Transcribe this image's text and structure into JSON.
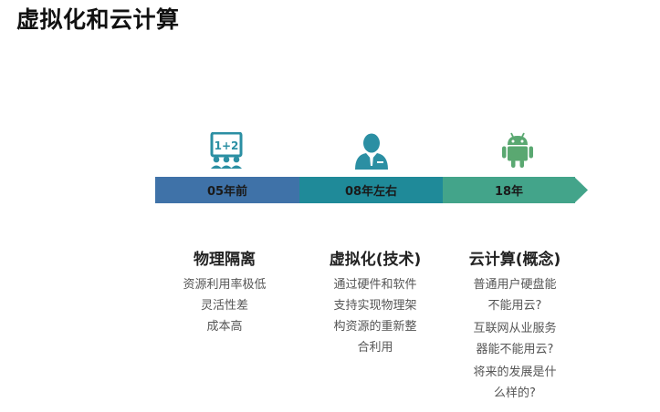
{
  "title": "虚拟化和云计算",
  "icons": [
    "classroom-icon",
    "user-icon",
    "android-icon"
  ],
  "colors": {
    "stage1": "#3f72a8",
    "stage2": "#1f8a99",
    "stage3": "#43a48a",
    "icon": "#2b8fa3",
    "android": "#5aa871"
  },
  "classroom_label": "1+2",
  "timeline": [
    {
      "label": "05年前"
    },
    {
      "label": "08年左右"
    },
    {
      "label": "18年"
    }
  ],
  "columns": [
    {
      "heading": "物理隔离",
      "lines": [
        "资源利用率极低",
        "灵活性差",
        "成本高"
      ]
    },
    {
      "heading": "虚拟化(技术)",
      "lines": [
        "通过硬件和软件",
        "支持实现物理架",
        "构资源的重新整",
        "合利用"
      ]
    },
    {
      "heading": "云计算(概念)",
      "lines": [
        "普通用户硬盘能",
        "不能用云?",
        "互联网从业服务",
        "器能不能用云?",
        "将来的发展是什",
        "么样的?"
      ]
    }
  ]
}
